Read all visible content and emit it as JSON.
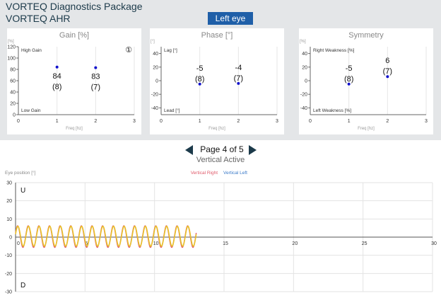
{
  "header": {
    "title": "VORTEQ Diagnostics Package",
    "subtitle": "VORTEQ AHR",
    "eye_button": "Left eye"
  },
  "pager": {
    "label": "Page 4 of 5"
  },
  "colors": {
    "accent": "#1f5fa8",
    "point": "#1111cc",
    "right": "#e05a6a",
    "left": "#e8c12a",
    "left_legend": "#3a7ac8"
  },
  "chart_data": [
    {
      "type": "scatter",
      "title": "Gain [%]",
      "ylabel": "[%]",
      "xlabel": "Freq [hz]",
      "xlim": [
        0,
        3
      ],
      "ylim": [
        0,
        120
      ],
      "xticks": [
        "0",
        "1",
        "2",
        "3"
      ],
      "yticks": [
        "0",
        "20",
        "40",
        "60",
        "80",
        "100",
        "120"
      ],
      "annotations": {
        "top": "High Gain",
        "bottom": "Low Gain",
        "badge": "①"
      },
      "points": [
        {
          "x": 1,
          "y": 84,
          "value": "84",
          "count": "(8)"
        },
        {
          "x": 2,
          "y": 83,
          "value": "83",
          "count": "(7)"
        }
      ]
    },
    {
      "type": "scatter",
      "title": "Phase [°]",
      "ylabel": "[°]",
      "xlabel": "Freq [hz]",
      "xlim": [
        0,
        3
      ],
      "ylim": [
        -50,
        50
      ],
      "xticks": [
        "0",
        "1",
        "2",
        "3"
      ],
      "yticks": [
        "-40",
        "-20",
        "0",
        "20",
        "40"
      ],
      "annotations": {
        "top": "Lag [°]",
        "bottom": "Lead [°]"
      },
      "points": [
        {
          "x": 1,
          "y": -5,
          "value": "-5",
          "count": "(8)"
        },
        {
          "x": 2,
          "y": -4,
          "value": "-4",
          "count": "(7)"
        }
      ]
    },
    {
      "type": "scatter",
      "title": "Symmetry",
      "ylabel": "[%]",
      "xlabel": "Freq [hz]",
      "xlim": [
        0,
        3
      ],
      "ylim": [
        -50,
        50
      ],
      "xticks": [
        "0",
        "1",
        "2",
        "3"
      ],
      "yticks": [
        "-40",
        "-20",
        "0",
        "20",
        "40"
      ],
      "annotations": {
        "top": "Right Weakness [%]",
        "bottom": "Left Weakness [%]"
      },
      "points": [
        {
          "x": 1,
          "y": -5,
          "value": "-5",
          "count": "(8)"
        },
        {
          "x": 2,
          "y": 6,
          "value": "6",
          "count": "(7)"
        }
      ]
    },
    {
      "type": "line",
      "title": "Vertical Active",
      "ylabel": "Eye position [°]",
      "xlim": [
        0,
        30
      ],
      "ylim": [
        -30,
        30
      ],
      "xticks": [
        "0",
        "5",
        "10",
        "15",
        "20",
        "25",
        "30"
      ],
      "yticks": [
        "-30",
        "-20",
        "-10",
        "0",
        "10",
        "20",
        "30"
      ],
      "annotations": {
        "top": "U",
        "bottom": "D"
      },
      "series": [
        {
          "name": "Vertical Right",
          "color": "#e05a6a"
        },
        {
          "name": "Vertical Left",
          "color": "#3a7ac8"
        }
      ],
      "signal": {
        "x_end": 13,
        "cycles": 17,
        "amplitude": 5.5,
        "offset": 0.5
      }
    }
  ]
}
